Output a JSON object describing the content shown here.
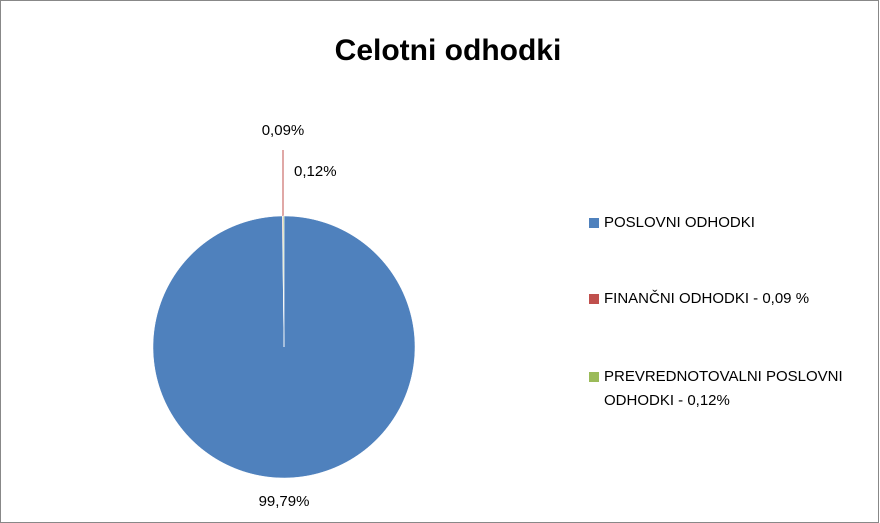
{
  "chart_data": {
    "type": "pie",
    "title": "Celotni odhodki",
    "categories": [
      "POSLOVNI ODHODKI",
      "FINANČNI ODHODKI - 0,09 %",
      "PREVREDNOTOVALNI POSLOVNI ODHODKI - 0,12%"
    ],
    "values": [
      99.79,
      0.09,
      0.12
    ],
    "value_labels": [
      "99,79%",
      "0,09%",
      "0,12%"
    ],
    "colors": [
      "#4f81bd",
      "#c0504d",
      "#9bbb59"
    ],
    "legend": "right"
  }
}
